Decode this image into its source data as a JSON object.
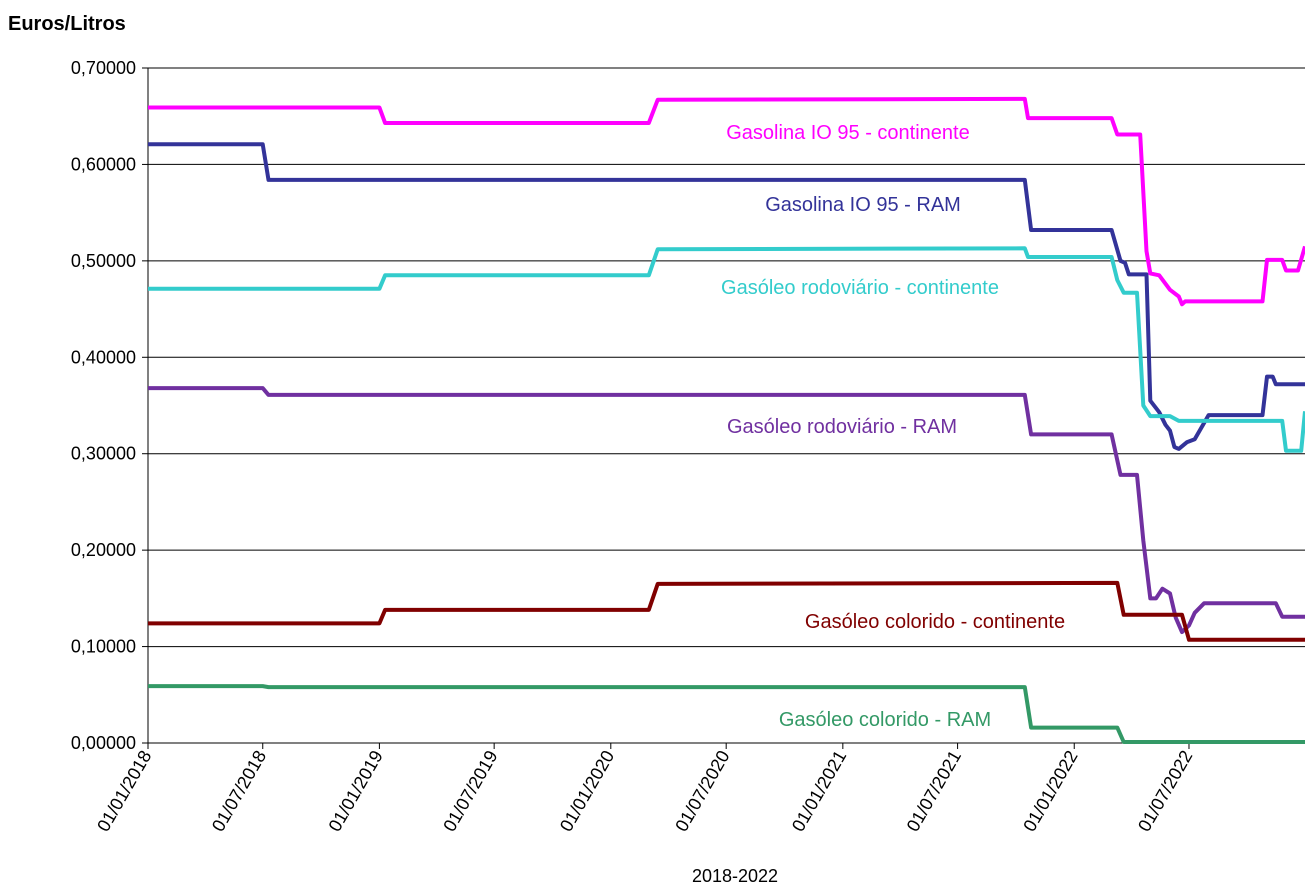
{
  "chart_data": {
    "type": "line",
    "ylabel": "Euros/Litros",
    "xlabel": "2018-2022",
    "ylim": [
      0,
      0.7
    ],
    "y_ticks": [
      "0,00000",
      "0,10000",
      "0,20000",
      "0,30000",
      "0,40000",
      "0,50000",
      "0,60000",
      "0,70000"
    ],
    "x_ticks": [
      "01/01/2018",
      "01/07/2018",
      "01/01/2019",
      "01/07/2019",
      "01/01/2020",
      "01/07/2020",
      "01/01/2021",
      "01/07/2021",
      "01/01/2022",
      "01/07/2022"
    ],
    "grid": true,
    "series": [
      {
        "name": "Gasolina IO 95 - continente",
        "color": "#FF00FF",
        "points": [
          [
            "2018-01-01",
            0.659
          ],
          [
            "2019-01-01",
            0.659
          ],
          [
            "2019-01-10",
            0.643
          ],
          [
            "2020-03-01",
            0.643
          ],
          [
            "2020-03-15",
            0.667
          ],
          [
            "2021-10-15",
            0.668
          ],
          [
            "2021-10-20",
            0.648
          ],
          [
            "2022-03-01",
            0.648
          ],
          [
            "2022-03-10",
            0.631
          ],
          [
            "2022-04-15",
            0.631
          ],
          [
            "2022-04-25",
            0.51
          ],
          [
            "2022-05-01",
            0.487
          ],
          [
            "2022-05-15",
            0.485
          ],
          [
            "2022-06-01",
            0.47
          ],
          [
            "2022-06-15",
            0.463
          ],
          [
            "2022-06-20",
            0.455
          ],
          [
            "2022-06-25",
            0.458
          ],
          [
            "2022-10-25",
            0.458
          ],
          [
            "2022-11-01",
            0.501
          ],
          [
            "2022-11-25",
            0.501
          ],
          [
            "2022-12-01",
            0.49
          ],
          [
            "2022-12-20",
            0.49
          ],
          [
            "2022-12-31",
            0.515
          ]
        ]
      },
      {
        "name": "Gasolina IO 95 - RAM",
        "color": "#333399",
        "points": [
          [
            "2018-01-01",
            0.621
          ],
          [
            "2018-07-01",
            0.621
          ],
          [
            "2018-07-10",
            0.584
          ],
          [
            "2021-10-15",
            0.584
          ],
          [
            "2021-10-25",
            0.532
          ],
          [
            "2022-03-01",
            0.532
          ],
          [
            "2022-03-15",
            0.5
          ],
          [
            "2022-03-22",
            0.498
          ],
          [
            "2022-03-28",
            0.486
          ],
          [
            "2022-04-25",
            0.486
          ],
          [
            "2022-05-01",
            0.355
          ],
          [
            "2022-05-15",
            0.343
          ],
          [
            "2022-05-25",
            0.33
          ],
          [
            "2022-06-01",
            0.324
          ],
          [
            "2022-06-08",
            0.307
          ],
          [
            "2022-06-15",
            0.305
          ],
          [
            "2022-06-28",
            0.312
          ],
          [
            "2022-07-10",
            0.315
          ],
          [
            "2022-08-01",
            0.34
          ],
          [
            "2022-10-25",
            0.34
          ],
          [
            "2022-11-01",
            0.38
          ],
          [
            "2022-11-10",
            0.38
          ],
          [
            "2022-11-15",
            0.372
          ],
          [
            "2022-12-31",
            0.372
          ]
        ]
      },
      {
        "name": "Gasóleo rodoviário - continente",
        "color": "#33CCCC",
        "points": [
          [
            "2018-01-01",
            0.471
          ],
          [
            "2019-01-01",
            0.471
          ],
          [
            "2019-01-10",
            0.485
          ],
          [
            "2020-03-01",
            0.485
          ],
          [
            "2020-03-15",
            0.512
          ],
          [
            "2021-10-15",
            0.513
          ],
          [
            "2021-10-20",
            0.504
          ],
          [
            "2022-03-01",
            0.504
          ],
          [
            "2022-03-10",
            0.48
          ],
          [
            "2022-03-20",
            0.467
          ],
          [
            "2022-04-10",
            0.467
          ],
          [
            "2022-04-20",
            0.35
          ],
          [
            "2022-05-01",
            0.339
          ],
          [
            "2022-06-01",
            0.339
          ],
          [
            "2022-06-15",
            0.334
          ],
          [
            "2022-11-25",
            0.334
          ],
          [
            "2022-12-01",
            0.303
          ],
          [
            "2022-12-25",
            0.303
          ],
          [
            "2022-12-31",
            0.344
          ]
        ]
      },
      {
        "name": "Gasóleo rodoviário - RAM",
        "color": "#7030A0",
        "points": [
          [
            "2018-01-01",
            0.368
          ],
          [
            "2018-07-01",
            0.368
          ],
          [
            "2018-07-10",
            0.361
          ],
          [
            "2021-10-15",
            0.361
          ],
          [
            "2021-10-25",
            0.32
          ],
          [
            "2022-03-01",
            0.32
          ],
          [
            "2022-03-15",
            0.278
          ],
          [
            "2022-04-10",
            0.278
          ],
          [
            "2022-04-20",
            0.21
          ],
          [
            "2022-05-01",
            0.15
          ],
          [
            "2022-05-10",
            0.15
          ],
          [
            "2022-05-20",
            0.16
          ],
          [
            "2022-06-01",
            0.155
          ],
          [
            "2022-06-10",
            0.13
          ],
          [
            "2022-06-20",
            0.115
          ],
          [
            "2022-07-01",
            0.122
          ],
          [
            "2022-07-10",
            0.135
          ],
          [
            "2022-07-25",
            0.145
          ],
          [
            "2022-11-15",
            0.145
          ],
          [
            "2022-11-25",
            0.131
          ],
          [
            "2022-12-31",
            0.131
          ]
        ]
      },
      {
        "name": "Gasóleo colorido - continente",
        "color": "#800000",
        "points": [
          [
            "2018-01-01",
            0.124
          ],
          [
            "2019-01-01",
            0.124
          ],
          [
            "2019-01-10",
            0.138
          ],
          [
            "2020-03-01",
            0.138
          ],
          [
            "2020-03-15",
            0.165
          ],
          [
            "2022-03-10",
            0.166
          ],
          [
            "2022-03-20",
            0.133
          ],
          [
            "2022-06-20",
            0.133
          ],
          [
            "2022-07-01",
            0.107
          ],
          [
            "2022-12-31",
            0.107
          ]
        ]
      },
      {
        "name": "Gasóleo colorido - RAM",
        "color": "#339966",
        "points": [
          [
            "2018-01-01",
            0.059
          ],
          [
            "2018-07-01",
            0.059
          ],
          [
            "2018-07-10",
            0.058
          ],
          [
            "2021-10-15",
            0.058
          ],
          [
            "2021-10-25",
            0.016
          ],
          [
            "2022-03-10",
            0.016
          ],
          [
            "2022-03-20",
            0.001
          ],
          [
            "2022-12-31",
            0.001
          ]
        ]
      }
    ]
  }
}
